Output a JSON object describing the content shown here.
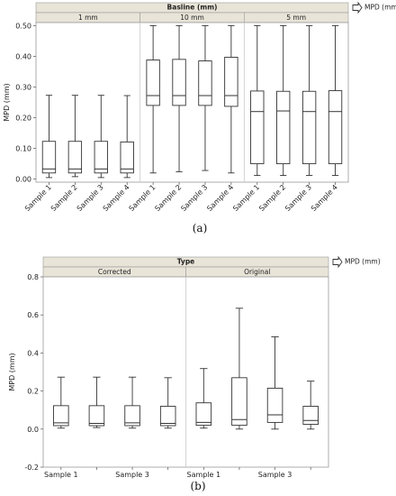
{
  "colors": {
    "header_bg": "#e8e4d8",
    "border": "#9a9a9a",
    "divider": "#c8c8c8",
    "box_stroke": "#333333",
    "grid": "#e6e6e6"
  },
  "chart_data": [
    {
      "type": "boxplot",
      "caption": "(a)",
      "header": "Basline (mm)",
      "legend": "MPD (mm)",
      "ylabel": "MPD (mm)",
      "xlabel": "",
      "ylim": [
        -0.01,
        0.51
      ],
      "yticks": [
        "0.00",
        "0.10",
        "0.20",
        "0.30",
        "0.40",
        "0.50"
      ],
      "ytick_values": [
        0,
        0.1,
        0.2,
        0.3,
        0.4,
        0.5
      ],
      "tick_rotation": "rotated",
      "panels": [
        {
          "name": "1 mm",
          "boxes": [
            {
              "label": "Sample 1",
              "min": 0.005,
              "q1": 0.02,
              "median": 0.033,
              "q3": 0.123,
              "max": 0.273
            },
            {
              "label": "Sample 2",
              "min": 0.008,
              "q1": 0.02,
              "median": 0.033,
              "q3": 0.123,
              "max": 0.273
            },
            {
              "label": "Sample 3",
              "min": 0.005,
              "q1": 0.02,
              "median": 0.033,
              "q3": 0.123,
              "max": 0.273
            },
            {
              "label": "Sample 4",
              "min": 0.005,
              "q1": 0.02,
              "median": 0.033,
              "q3": 0.121,
              "max": 0.272
            }
          ]
        },
        {
          "name": "10 mm",
          "boxes": [
            {
              "label": "Sample 1",
              "min": 0.02,
              "q1": 0.24,
              "median": 0.272,
              "q3": 0.388,
              "max": 0.5
            },
            {
              "label": "Sample 2",
              "min": 0.024,
              "q1": 0.24,
              "median": 0.272,
              "q3": 0.39,
              "max": 0.5
            },
            {
              "label": "Sample 3",
              "min": 0.028,
              "q1": 0.24,
              "median": 0.272,
              "q3": 0.385,
              "max": 0.5
            },
            {
              "label": "Sample 4",
              "min": 0.02,
              "q1": 0.237,
              "median": 0.272,
              "q3": 0.397,
              "max": 0.5
            }
          ]
        },
        {
          "name": "5 mm",
          "boxes": [
            {
              "label": "Sample 1",
              "min": 0.012,
              "q1": 0.05,
              "median": 0.22,
              "q3": 0.287,
              "max": 0.5
            },
            {
              "label": "Sample 2",
              "min": 0.012,
              "q1": 0.05,
              "median": 0.222,
              "q3": 0.286,
              "max": 0.5
            },
            {
              "label": "Sample 3",
              "min": 0.012,
              "q1": 0.05,
              "median": 0.22,
              "q3": 0.286,
              "max": 0.5
            },
            {
              "label": "Sample 4",
              "min": 0.012,
              "q1": 0.05,
              "median": 0.22,
              "q3": 0.288,
              "max": 0.5
            }
          ]
        }
      ]
    },
    {
      "type": "boxplot",
      "caption": "(b)",
      "header": "Type",
      "legend": "MPD (mm)",
      "ylabel": "MPD (mm)",
      "xlabel": "",
      "ylim": [
        -0.2,
        0.8
      ],
      "yticks": [
        "-0.2",
        "0.0",
        "0.2",
        "0.4",
        "0.6",
        "0.8"
      ],
      "ytick_values": [
        -0.2,
        0,
        0.2,
        0.4,
        0.6,
        0.8
      ],
      "tick_rotation": "horizontal",
      "panels": [
        {
          "name": "Corrected",
          "boxes": [
            {
              "label": "Sample 1",
              "min": 0.005,
              "q1": 0.018,
              "median": 0.033,
              "q3": 0.123,
              "max": 0.273
            },
            {
              "label": "",
              "min": 0.008,
              "q1": 0.018,
              "median": 0.03,
              "q3": 0.123,
              "max": 0.273
            },
            {
              "label": "Sample 3",
              "min": 0.005,
              "q1": 0.018,
              "median": 0.033,
              "q3": 0.123,
              "max": 0.273
            },
            {
              "label": "",
              "min": 0.005,
              "q1": 0.018,
              "median": 0.03,
              "q3": 0.12,
              "max": 0.27
            }
          ]
        },
        {
          "name": "Original",
          "boxes": [
            {
              "label": "Sample 1",
              "min": 0.005,
              "q1": 0.02,
              "median": 0.035,
              "q3": 0.138,
              "max": 0.318
            },
            {
              "label": "",
              "min": 0.0,
              "q1": 0.02,
              "median": 0.05,
              "q3": 0.27,
              "max": 0.635
            },
            {
              "label": "Sample 3",
              "min": 0.0,
              "q1": 0.035,
              "median": 0.075,
              "q3": 0.215,
              "max": 0.485
            },
            {
              "label": "",
              "min": 0.0,
              "q1": 0.025,
              "median": 0.045,
              "q3": 0.12,
              "max": 0.252
            }
          ]
        }
      ]
    }
  ]
}
